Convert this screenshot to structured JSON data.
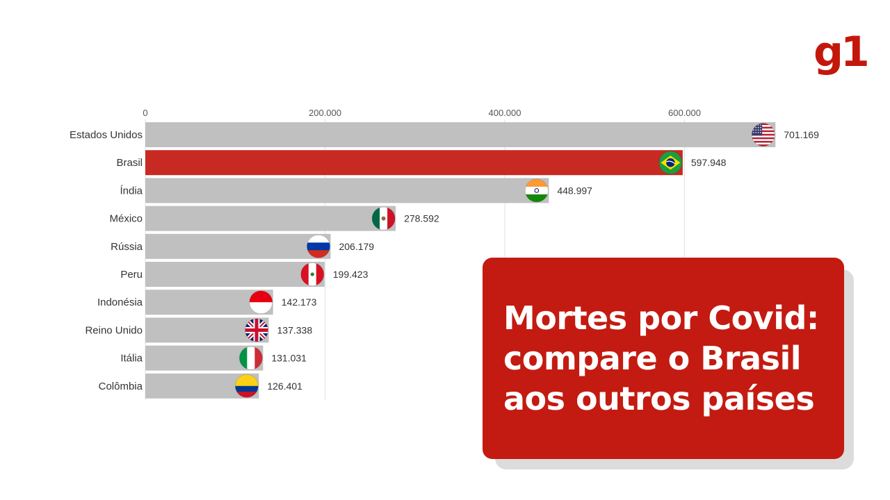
{
  "brand": {
    "logo_text": "g1",
    "color": "#c4170c"
  },
  "headline": {
    "lines": [
      "Mortes por Covid:",
      "compare o Brasil",
      "aos outros países"
    ],
    "background": "#c31b12",
    "text_color": "#ffffff"
  },
  "chart_data": {
    "type": "bar",
    "orientation": "horizontal",
    "title": "",
    "xlabel": "",
    "ylabel": "",
    "xlim": [
      0,
      700000
    ],
    "x_ticks": [
      {
        "value": 0,
        "label": "0"
      },
      {
        "value": 200000,
        "label": "200.000"
      },
      {
        "value": 400000,
        "label": "400.000"
      },
      {
        "value": 600000,
        "label": "600.000"
      }
    ],
    "grid": true,
    "categories": [
      "Estados Unidos",
      "Brasil",
      "Índia",
      "México",
      "Rússia",
      "Peru",
      "Indonésia",
      "Reino Unido",
      "Itália",
      "Colômbia"
    ],
    "values": [
      701169,
      597948,
      448997,
      278592,
      206179,
      199423,
      142173,
      137338,
      131031,
      126401
    ],
    "value_labels": [
      "701.169",
      "597.948",
      "448.997",
      "278.592",
      "206.179",
      "199.423",
      "142.173",
      "137.338",
      "131.031",
      "126.401"
    ],
    "flags": [
      "usa-flag-icon",
      "brazil-flag-icon",
      "india-flag-icon",
      "mexico-flag-icon",
      "russia-flag-icon",
      "peru-flag-icon",
      "indonesia-flag-icon",
      "uk-flag-icon",
      "italy-flag-icon",
      "colombia-flag-icon"
    ],
    "highlight": "Brasil",
    "colors": {
      "bar": "#c0c0c0",
      "highlight_bar": "#c72a22",
      "grid": "#e0e0e0",
      "text": "#333333"
    }
  }
}
